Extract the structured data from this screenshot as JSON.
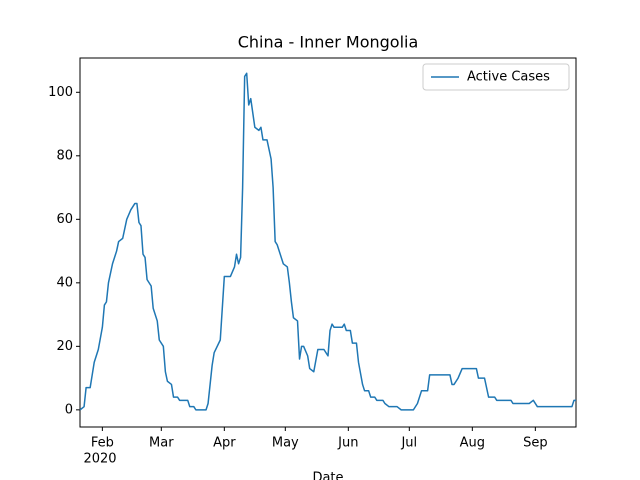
{
  "chart_data": {
    "type": "line",
    "title": "China - Inner Mongolia",
    "xlabel": "Date",
    "x_year_label": "2020",
    "x": [
      21,
      23,
      24,
      26,
      28,
      30,
      32,
      33,
      34,
      35,
      37,
      39,
      40,
      42,
      44,
      46,
      48,
      49,
      50,
      51,
      52,
      53,
      54,
      56,
      57,
      59,
      60,
      62,
      63,
      64,
      66,
      67,
      69,
      70,
      74,
      75,
      77,
      78,
      83,
      84,
      86,
      87,
      90,
      91,
      92,
      95,
      97,
      98,
      99,
      100,
      101,
      102,
      103,
      104,
      105,
      107,
      109,
      110,
      111,
      113,
      115,
      116,
      117,
      118,
      120,
      121,
      123,
      124,
      125,
      126,
      128,
      129,
      130,
      131,
      133,
      134,
      136,
      138,
      141,
      143,
      144,
      145,
      146,
      150,
      151,
      152,
      154,
      155,
      157,
      158,
      160,
      161,
      163,
      164,
      166,
      167,
      170,
      171,
      173,
      177,
      179,
      185,
      187,
      189,
      192,
      193,
      203,
      204,
      205,
      207,
      209,
      216,
      217,
      220,
      222,
      225,
      226,
      233,
      234,
      242,
      244,
      246,
      263,
      264,
      265
    ],
    "series": [
      {
        "name": "Active Cases",
        "color": "#1f77b4",
        "values": [
          0,
          1,
          7,
          7,
          15,
          19,
          26,
          33,
          34,
          40,
          46,
          50,
          53,
          54,
          60,
          63,
          65,
          65,
          59,
          58,
          49,
          48,
          41,
          39,
          32,
          28,
          22,
          20,
          12,
          9,
          8,
          4,
          4,
          3,
          3,
          1,
          1,
          0,
          0,
          2,
          14,
          18,
          22,
          32,
          42,
          42,
          45,
          49,
          46,
          48,
          70,
          105,
          106,
          96,
          98,
          89,
          88,
          89,
          85,
          85,
          79,
          70,
          53,
          52,
          48,
          46,
          45,
          40,
          34,
          29,
          28,
          16,
          20,
          20,
          17,
          13,
          12,
          19,
          19,
          17,
          25,
          27,
          26,
          26,
          27,
          25,
          25,
          21,
          21,
          15,
          8,
          6,
          6,
          4,
          4,
          3,
          3,
          2,
          1,
          1,
          0,
          0,
          2,
          6,
          6,
          11,
          11,
          8,
          8,
          10,
          13,
          13,
          10,
          10,
          4,
          4,
          3,
          3,
          2,
          2,
          3,
          1,
          1,
          3,
          3
        ]
      }
    ],
    "xlim": [
      21,
      265
    ],
    "xticks": [
      {
        "value": 32,
        "label": "Feb"
      },
      {
        "value": 61,
        "label": "Mar"
      },
      {
        "value": 92,
        "label": "Apr"
      },
      {
        "value": 122,
        "label": "May"
      },
      {
        "value": 153,
        "label": "Jun"
      },
      {
        "value": 183,
        "label": "Jul"
      },
      {
        "value": 214,
        "label": "Aug"
      },
      {
        "value": 245,
        "label": "Sep"
      }
    ],
    "ylim": [
      -5.4,
      110.8
    ],
    "yticks": [
      0,
      20,
      40,
      60,
      80,
      100
    ],
    "grid": false,
    "legend": "upper right"
  }
}
